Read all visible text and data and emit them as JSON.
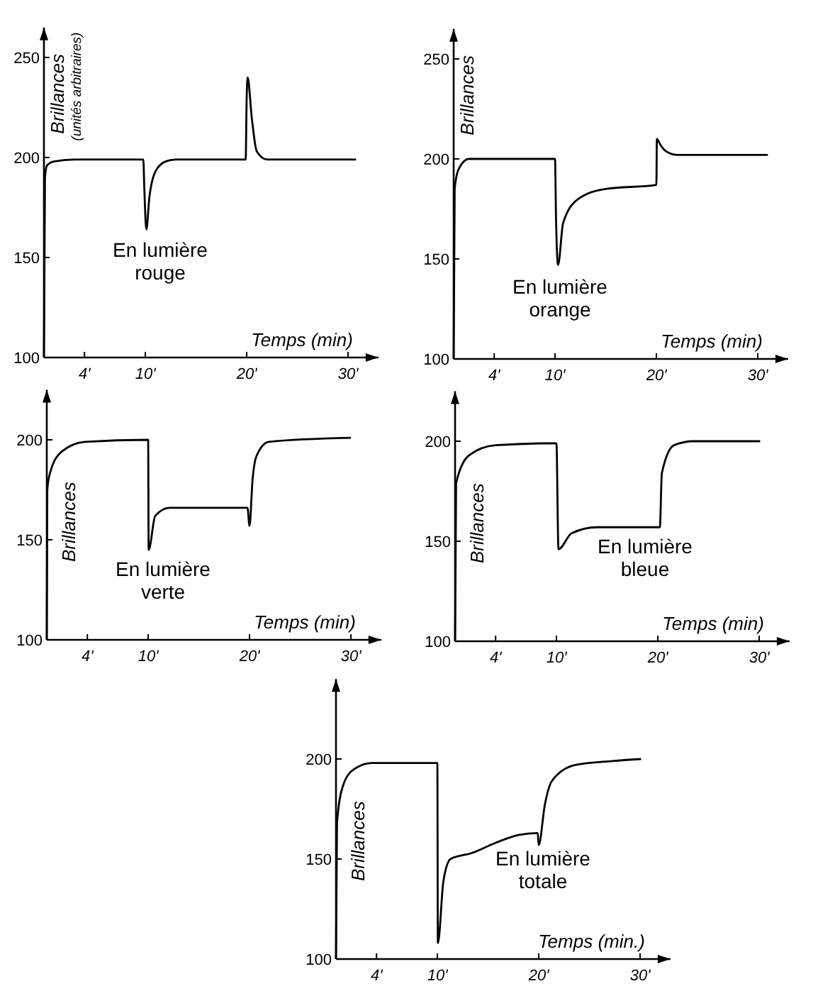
{
  "chart_data": [
    {
      "type": "line",
      "xlabel": "Temps (min)",
      "ylabel": "Brillances",
      "xlim": [
        0,
        33
      ],
      "ylim": [
        100,
        265
      ],
      "xticks": [
        {
          "value": 4,
          "label": "4'"
        },
        {
          "value": 10,
          "label": "10'"
        },
        {
          "value": 20,
          "label": "20'"
        },
        {
          "value": 30,
          "label": "30'"
        }
      ],
      "yticks": [
        100,
        150,
        200,
        250
      ],
      "grid": false,
      "marker": "none",
      "line_style": "solid",
      "color": "#000000",
      "x": [
        0,
        0.1,
        0.3,
        1,
        3,
        9.8,
        9.9,
        10.1,
        10.4,
        11,
        12,
        13,
        19.9,
        20,
        20.1,
        20.5,
        21,
        22,
        30.8
      ],
      "values": [
        100,
        190,
        196,
        198,
        199,
        199,
        185,
        164,
        180,
        193,
        198,
        199,
        199,
        230,
        240,
        220,
        203,
        199,
        199
      ],
      "annotations": [
        "En lumière\nrouge",
        "(unités arbitraires)"
      ]
    },
    {
      "type": "line",
      "xlabel": "Temps (min)",
      "ylabel": "Brillances",
      "xlim": [
        0,
        33
      ],
      "ylim": [
        100,
        265
      ],
      "xticks": [
        {
          "value": 4,
          "label": "4'"
        },
        {
          "value": 10,
          "label": "10'"
        },
        {
          "value": 20,
          "label": "20'"
        },
        {
          "value": 30,
          "label": "30'"
        }
      ],
      "yticks": [
        100,
        150,
        200,
        250
      ],
      "grid": false,
      "marker": "none",
      "line_style": "solid",
      "color": "#000000",
      "x": [
        0,
        0.1,
        0.5,
        1.5,
        10,
        10.1,
        10.3,
        10.8,
        12.3,
        15,
        20,
        20.05,
        20.4,
        20.9,
        22,
        31
      ],
      "values": [
        100,
        185,
        195,
        200,
        200,
        170,
        147,
        168,
        180,
        185,
        187,
        210,
        207,
        204,
        202,
        202
      ],
      "annotations": [
        "En lumière\norange"
      ]
    },
    {
      "type": "line",
      "xlabel": "Temps (min)",
      "ylabel": "Brillances",
      "xlim": [
        0,
        33
      ],
      "ylim": [
        100,
        225
      ],
      "xticks": [
        {
          "value": 4,
          "label": "4'"
        },
        {
          "value": 10,
          "label": "10'"
        },
        {
          "value": 20,
          "label": "20'"
        },
        {
          "value": 30,
          "label": "30'"
        }
      ],
      "yticks": [
        100,
        150,
        200
      ],
      "grid": false,
      "marker": "none",
      "line_style": "solid",
      "color": "#000000",
      "x": [
        0,
        0.05,
        0.3,
        1.45,
        3.8,
        10,
        10.05,
        10.7,
        12.1,
        19.8,
        20,
        20.3,
        20.7,
        21.9,
        30
      ],
      "values": [
        100,
        175,
        183,
        194,
        199,
        200,
        145,
        162,
        166,
        166,
        157,
        180,
        192,
        199,
        201
      ],
      "annotations": [
        "En lumière\nverte"
      ]
    },
    {
      "type": "line",
      "xlabel": "Temps (min)",
      "ylabel": "Brillances",
      "xlim": [
        0,
        33
      ],
      "ylim": [
        100,
        225
      ],
      "xticks": [
        {
          "value": 4,
          "label": "4'"
        },
        {
          "value": 10,
          "label": "10'"
        },
        {
          "value": 20,
          "label": "20'"
        },
        {
          "value": 30,
          "label": "30'"
        }
      ],
      "yticks": [
        100,
        150,
        200
      ],
      "grid": false,
      "marker": "none",
      "line_style": "solid",
      "color": "#000000",
      "x": [
        0,
        0.1,
        1.4,
        4,
        10,
        10.2,
        11.5,
        14,
        20.2,
        20.4,
        21.6,
        23.5,
        30.1
      ],
      "values": [
        100,
        179,
        193,
        198,
        199,
        146,
        154,
        157,
        157,
        184,
        198,
        200,
        200
      ],
      "annotations": [
        "En lumière\nbleue"
      ]
    },
    {
      "type": "line",
      "xlabel": "Temps (min.)",
      "ylabel": "Brillances",
      "xlim": [
        0,
        33
      ],
      "ylim": [
        100,
        240
      ],
      "xticks": [
        {
          "value": 4,
          "label": "4'"
        },
        {
          "value": 10,
          "label": "10'"
        },
        {
          "value": 20,
          "label": "20'"
        },
        {
          "value": 30,
          "label": "30'"
        }
      ],
      "yticks": [
        100,
        150,
        200
      ],
      "grid": false,
      "marker": "none",
      "line_style": "solid",
      "color": "#000000",
      "x": [
        0,
        0.1,
        0.65,
        1.8,
        3.6,
        10,
        10.05,
        10.6,
        11.3,
        13.4,
        15.7,
        18,
        19.9,
        20,
        20.6,
        21.3,
        23.6,
        27.3,
        30.1
      ],
      "values": [
        100,
        168,
        186,
        195,
        198,
        198,
        108,
        139,
        150,
        153,
        158,
        162,
        163,
        157,
        177,
        189,
        197,
        199,
        200
      ],
      "annotations": [
        "En lumière\ntotale"
      ]
    }
  ]
}
